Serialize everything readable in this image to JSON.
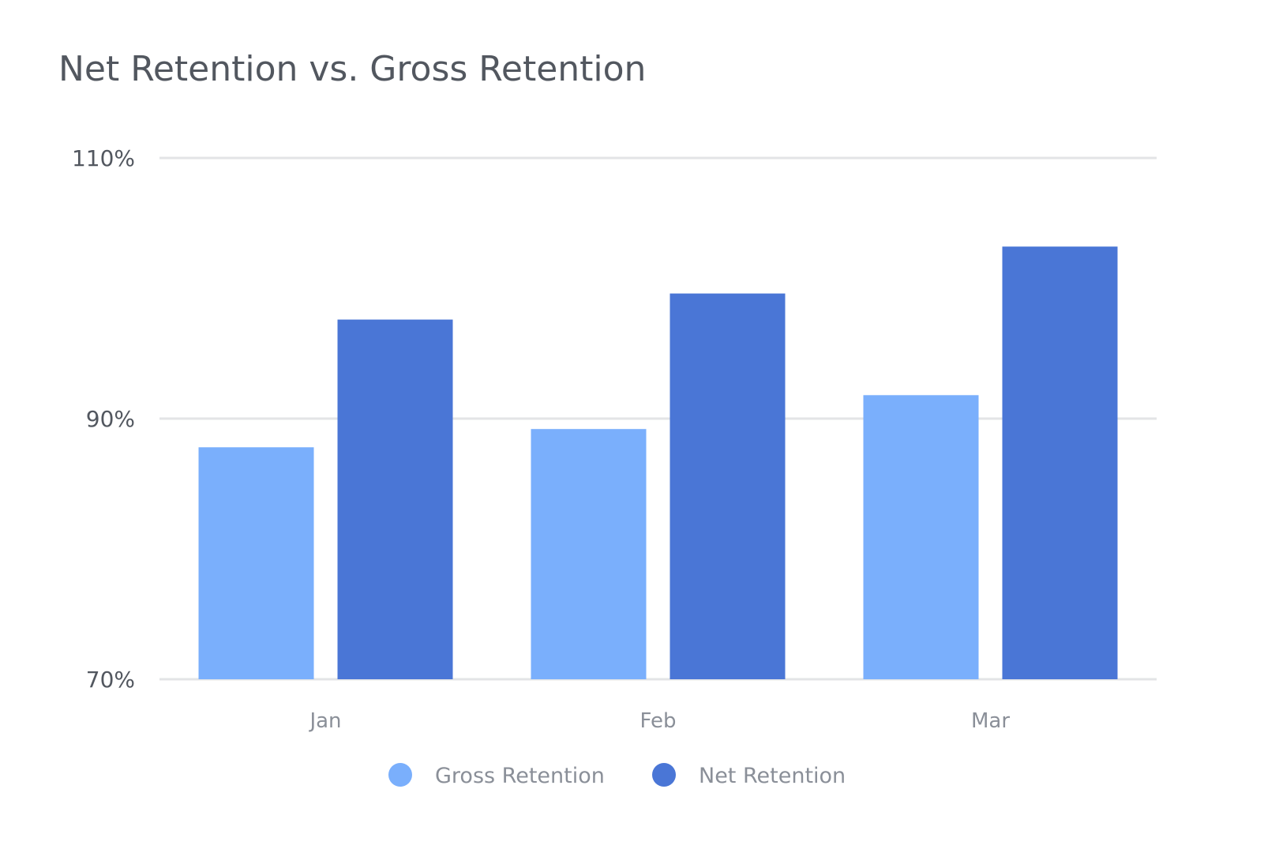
{
  "chart_data": {
    "type": "bar",
    "title": "Net Retention vs. Gross Retention",
    "xlabel": "",
    "ylabel": "",
    "categories": [
      "Jan",
      "Feb",
      "Mar"
    ],
    "series": [
      {
        "name": "Gross Retention",
        "values": [
          87.8,
          89.2,
          91.8
        ],
        "color": "#7aaffc"
      },
      {
        "name": "Net Retention",
        "values": [
          97.6,
          99.6,
          103.2
        ],
        "color": "#4a76d6"
      }
    ],
    "ylim": [
      70,
      110
    ],
    "yticks": [
      70,
      90,
      110
    ],
    "ytick_labels": [
      "70%",
      "90%",
      "110%"
    ],
    "grid": true,
    "legend_position": "bottom"
  }
}
